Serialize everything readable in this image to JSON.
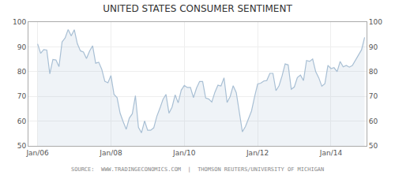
{
  "chart_data": {
    "type": "line",
    "title": "UNITED STATES CONSUMER SENTIMENT",
    "source": "SOURCE:  WWW.TRADINGECONOMICS.COM  |  THOMSON REUTERS/UNIVERSITY OF MICHIGAN",
    "x": [
      2006.0,
      2006.083,
      2006.167,
      2006.25,
      2006.333,
      2006.417,
      2006.5,
      2006.583,
      2006.667,
      2006.75,
      2006.833,
      2006.917,
      2007.0,
      2007.083,
      2007.167,
      2007.25,
      2007.333,
      2007.417,
      2007.5,
      2007.583,
      2007.667,
      2007.75,
      2007.833,
      2007.917,
      2008.0,
      2008.083,
      2008.167,
      2008.25,
      2008.333,
      2008.417,
      2008.5,
      2008.583,
      2008.667,
      2008.75,
      2008.833,
      2008.917,
      2009.0,
      2009.083,
      2009.167,
      2009.25,
      2009.333,
      2009.417,
      2009.5,
      2009.583,
      2009.667,
      2009.75,
      2009.833,
      2009.917,
      2010.0,
      2010.083,
      2010.167,
      2010.25,
      2010.333,
      2010.417,
      2010.5,
      2010.583,
      2010.667,
      2010.75,
      2010.833,
      2010.917,
      2011.0,
      2011.083,
      2011.167,
      2011.25,
      2011.333,
      2011.417,
      2011.5,
      2011.583,
      2011.667,
      2011.75,
      2011.833,
      2011.917,
      2012.0,
      2012.083,
      2012.167,
      2012.25,
      2012.333,
      2012.417,
      2012.5,
      2012.583,
      2012.667,
      2012.75,
      2012.833,
      2012.917,
      2013.0,
      2013.083,
      2013.167,
      2013.25,
      2013.333,
      2013.417,
      2013.5,
      2013.583,
      2013.667,
      2013.75,
      2013.833,
      2013.917,
      2014.0,
      2014.083,
      2014.167,
      2014.25,
      2014.333,
      2014.417,
      2014.5,
      2014.583,
      2014.667,
      2014.75,
      2014.833,
      2014.917
    ],
    "values": [
      91.2,
      87.4,
      88.9,
      88.7,
      79.1,
      84.9,
      84.7,
      82.0,
      92.0,
      93.6,
      97.0,
      94.4,
      96.9,
      91.3,
      88.4,
      87.9,
      85.3,
      88.3,
      90.4,
      83.4,
      83.8,
      80.9,
      76.1,
      75.5,
      78.4,
      70.8,
      69.5,
      63.2,
      59.8,
      56.7,
      61.2,
      63.0,
      70.3,
      57.5,
      55.3,
      60.1,
      56.3,
      56.3,
      57.3,
      61.9,
      65.1,
      68.7,
      70.8,
      63.2,
      65.7,
      70.6,
      67.4,
      72.5,
      74.4,
      73.6,
      73.6,
      69.5,
      73.3,
      76.0,
      76.0,
      69.3,
      68.9,
      67.7,
      71.6,
      74.5,
      74.2,
      77.5,
      67.5,
      69.9,
      74.3,
      71.5,
      63.7,
      55.7,
      57.8,
      60.9,
      64.1,
      69.9,
      75.0,
      75.3,
      76.2,
      76.4,
      79.3,
      79.3,
      72.3,
      74.3,
      78.3,
      83.1,
      82.7,
      72.9,
      73.8,
      77.6,
      78.6,
      76.4,
      84.5,
      84.1,
      85.1,
      80.0,
      77.5,
      74.1,
      75.1,
      82.5,
      81.2,
      81.6,
      80.0,
      84.1,
      81.9,
      82.5,
      81.8,
      82.5,
      84.6,
      86.9,
      88.8,
      93.8
    ],
    "color": "#a8bfd4",
    "xlim": [
      2005.75,
      2014.97
    ],
    "xticks": [
      {
        "value": 2006.0,
        "label": "Jan/06"
      },
      {
        "value": 2008.0,
        "label": "Jan/08"
      },
      {
        "value": 2010.0,
        "label": "Jan/10"
      },
      {
        "value": 2012.0,
        "label": "Jan/12"
      },
      {
        "value": 2014.0,
        "label": "Jan/14"
      }
    ],
    "ylim": [
      50,
      100
    ],
    "yticks": [
      50,
      60,
      70,
      80,
      90,
      100
    ],
    "y2lim": [
      50,
      100
    ],
    "y2ticks": [
      50,
      60,
      70,
      80,
      90,
      100
    ],
    "grid": true
  }
}
